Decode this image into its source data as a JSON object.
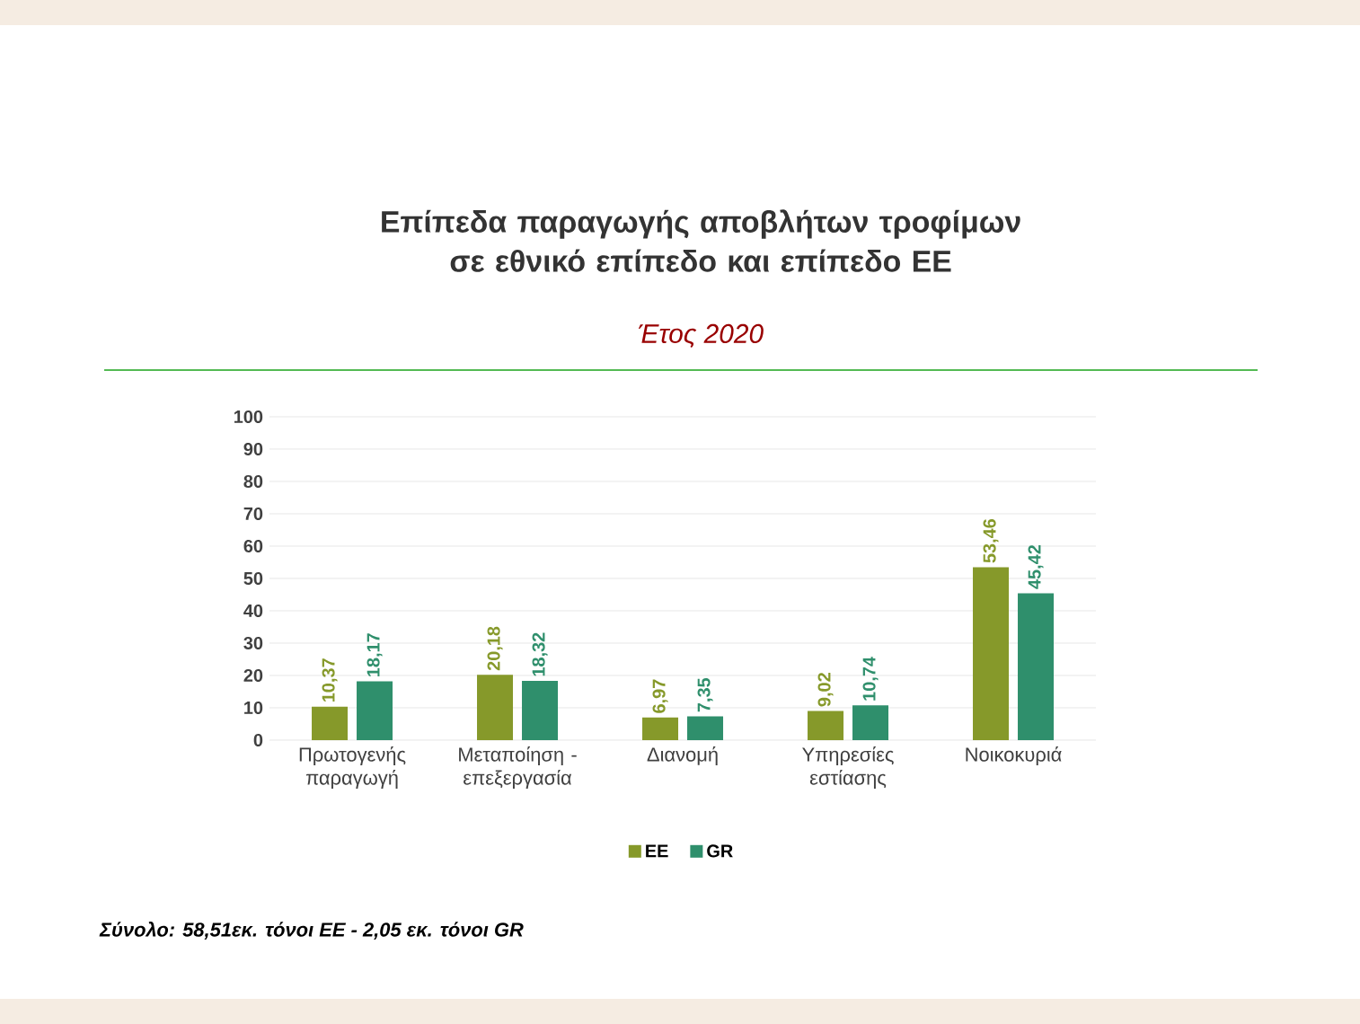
{
  "chart_data": {
    "type": "bar",
    "title": "Επίπεδα παραγωγής αποβλήτων τροφίμων σε εθνικό επίπεδο και επίπεδο ΕΕ",
    "subtitle": "Έτος 2020",
    "categories": [
      "Πρωτογενής παραγωγή",
      "Μεταποίηση - επεξεργασία",
      "Διανομή",
      "Υπηρεσίες εστίασης",
      "Νοικοκυριά"
    ],
    "series": [
      {
        "name": "ΕΕ",
        "color": "#86992a",
        "values": [
          10.37,
          20.18,
          6.97,
          9.02,
          53.46
        ],
        "value_labels": [
          "10,37",
          "20,18",
          "6,97",
          "9,02",
          "53,46"
        ]
      },
      {
        "name": "GR",
        "color": "#2f8f6c",
        "values": [
          18.17,
          18.32,
          7.35,
          10.74,
          45.42
        ],
        "value_labels": [
          "18,17",
          "18,32",
          "7,35",
          "10,74",
          "45,42"
        ]
      }
    ],
    "ylim": [
      0,
      100
    ],
    "yticks": [
      0,
      10,
      20,
      30,
      40,
      50,
      60,
      70,
      80,
      90,
      100
    ],
    "grid": "y",
    "legend": "bottom",
    "annotations": [
      "Σύνολο: 58,51εκ. τόνοι ΕΕ -  2,05 εκ. τόνοι GR"
    ]
  }
}
